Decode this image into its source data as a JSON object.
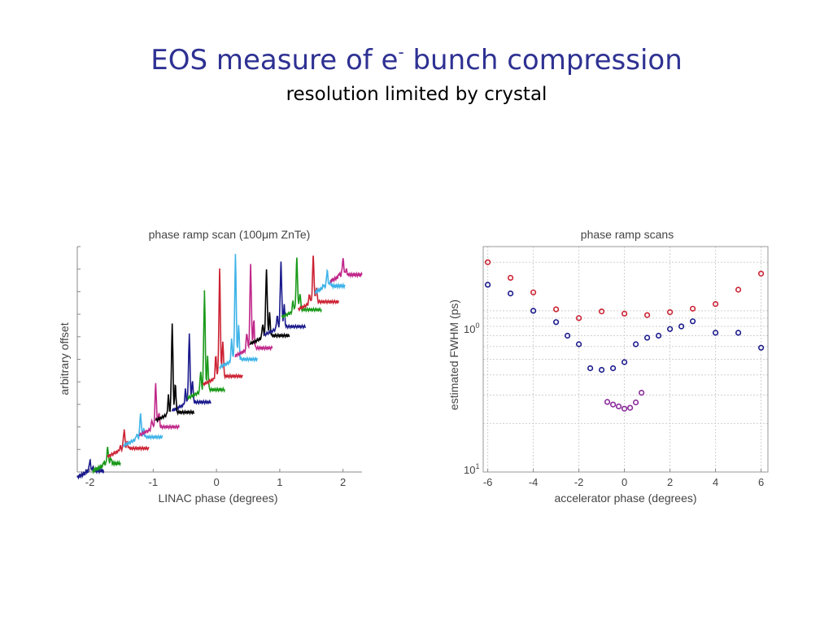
{
  "slide": {
    "title_main": "EOS measure of e",
    "title_sup": "-",
    "title_rest": " bunch compression",
    "subtitle": "resolution limited by crystal"
  },
  "colors": {
    "title": "#2e3192",
    "navy": "#1a1a8c",
    "green": "#1a9a1a",
    "red": "#cc2233",
    "black": "#000000",
    "cyan": "#3fb3e8",
    "magenta": "#c0288a",
    "purple": "#8a2a9a"
  },
  "chart_data": [
    {
      "type": "line",
      "title": "phase ramp scan (100μm ZnTe)",
      "xlabel": "LINAC phase (degrees)",
      "ylabel": "arbitrary offset",
      "xlim": [
        -2.2,
        2.3
      ],
      "ylim": [
        0,
        10
      ],
      "xticks": [
        -2,
        -1,
        0,
        1,
        2
      ],
      "xtick_labels": [
        "-2",
        "-1",
        "0",
        "1",
        "2"
      ],
      "grid": false,
      "series": [
        {
          "color": "navy",
          "start": -2.2,
          "peak": -2.0,
          "end": -1.78,
          "base": 0.05,
          "height": 0.45
        },
        {
          "color": "green",
          "start": -1.96,
          "peak": -1.72,
          "end": -1.52,
          "base": 0.38,
          "height": 0.7
        },
        {
          "color": "red",
          "start": -1.72,
          "peak": -1.46,
          "end": -1.07,
          "base": 1.05,
          "height": 0.8
        },
        {
          "color": "cyan",
          "start": -1.47,
          "peak": -1.2,
          "end": -0.85,
          "base": 1.55,
          "height": 1.0
        },
        {
          "color": "magenta",
          "start": -1.22,
          "peak": -0.96,
          "end": -0.59,
          "base": 2.0,
          "height": 1.85
        },
        {
          "color": "navy",
          "start": -0.7,
          "peak": -0.43,
          "end": -0.09,
          "base": 3.1,
          "height": 2.9
        },
        {
          "color": "black",
          "start": -0.96,
          "peak": -0.7,
          "end": -0.35,
          "base": 2.65,
          "height": 3.75
        },
        {
          "color": "green",
          "start": -0.46,
          "peak": -0.19,
          "end": 0.13,
          "base": 3.65,
          "height": 4.2
        },
        {
          "color": "red",
          "start": -0.21,
          "peak": 0.05,
          "end": 0.41,
          "base": 4.25,
          "height": 4.55
        },
        {
          "color": "cyan",
          "start": 0.05,
          "peak": 0.3,
          "end": 0.65,
          "base": 5.0,
          "height": 4.45
        },
        {
          "color": "magenta",
          "start": 0.29,
          "peak": 0.54,
          "end": 0.88,
          "base": 5.5,
          "height": 3.55
        },
        {
          "color": "black",
          "start": 0.53,
          "peak": 0.79,
          "end": 1.15,
          "base": 6.05,
          "height": 2.8
        },
        {
          "color": "navy",
          "start": 0.75,
          "peak": 1.02,
          "end": 1.41,
          "base": 6.45,
          "height": 2.75
        },
        {
          "color": "green",
          "start": 1.03,
          "peak": 1.27,
          "end": 1.66,
          "base": 7.2,
          "height": 2.2
        },
        {
          "color": "red",
          "start": 1.29,
          "peak": 1.53,
          "end": 1.93,
          "base": 7.55,
          "height": 1.95
        },
        {
          "color": "cyan",
          "start": 1.56,
          "peak": 1.75,
          "end": 2.03,
          "base": 8.25,
          "height": 0.65
        },
        {
          "color": "magenta",
          "start": 1.8,
          "peak": 2.0,
          "end": 2.3,
          "base": 8.75,
          "height": 0.7
        }
      ]
    },
    {
      "type": "scatter",
      "title": "phase ramp scans",
      "xlabel": "accelerator phase (degrees)",
      "ylabel": "estimated FWHM (ps)",
      "xlim": [
        -6.2,
        6.3
      ],
      "ylim": [
        0.1,
        2.5
      ],
      "y_scale": "log",
      "xticks": [
        -6,
        -4,
        -2,
        0,
        2,
        4,
        6
      ],
      "xtick_labels": [
        "-6",
        "-4",
        "-2",
        "0",
        "2",
        "4",
        "6"
      ],
      "ytick_labels": [
        {
          "base": "10",
          "exp": "0"
        },
        {
          "base": "10",
          "exp": "1"
        }
      ],
      "grid": true,
      "series": [
        {
          "color": "red",
          "points": [
            [
              -6,
              2.0
            ],
            [
              -5,
              1.6
            ],
            [
              -4,
              1.3
            ],
            [
              -3,
              1.02
            ],
            [
              -2,
              0.9
            ],
            [
              -1,
              0.99
            ],
            [
              0,
              0.96
            ],
            [
              1,
              0.94
            ],
            [
              2,
              0.98
            ],
            [
              3,
              1.03
            ],
            [
              4,
              1.1
            ],
            [
              5,
              1.35
            ],
            [
              6,
              1.7
            ]
          ]
        },
        {
          "color": "navy",
          "points": [
            [
              -6,
              1.45
            ],
            [
              -5,
              1.28
            ],
            [
              -4,
              1.0
            ],
            [
              -3,
              0.85
            ],
            [
              -2.5,
              0.7
            ],
            [
              -2,
              0.62
            ],
            [
              -1.5,
              0.44
            ],
            [
              -1,
              0.43
            ],
            [
              -0.5,
              0.44
            ],
            [
              0,
              0.48
            ],
            [
              0.5,
              0.62
            ],
            [
              1,
              0.68
            ],
            [
              1.5,
              0.7
            ],
            [
              2,
              0.77
            ],
            [
              2.5,
              0.8
            ],
            [
              3,
              0.86
            ],
            [
              4,
              0.73
            ],
            [
              5,
              0.73
            ],
            [
              6,
              0.59
            ]
          ]
        },
        {
          "color": "purple",
          "points": [
            [
              -0.75,
              0.272
            ],
            [
              -0.5,
              0.262
            ],
            [
              -0.25,
              0.255
            ],
            [
              0,
              0.247
            ],
            [
              0.25,
              0.25
            ],
            [
              0.5,
              0.27
            ],
            [
              0.75,
              0.31
            ]
          ]
        }
      ]
    }
  ]
}
